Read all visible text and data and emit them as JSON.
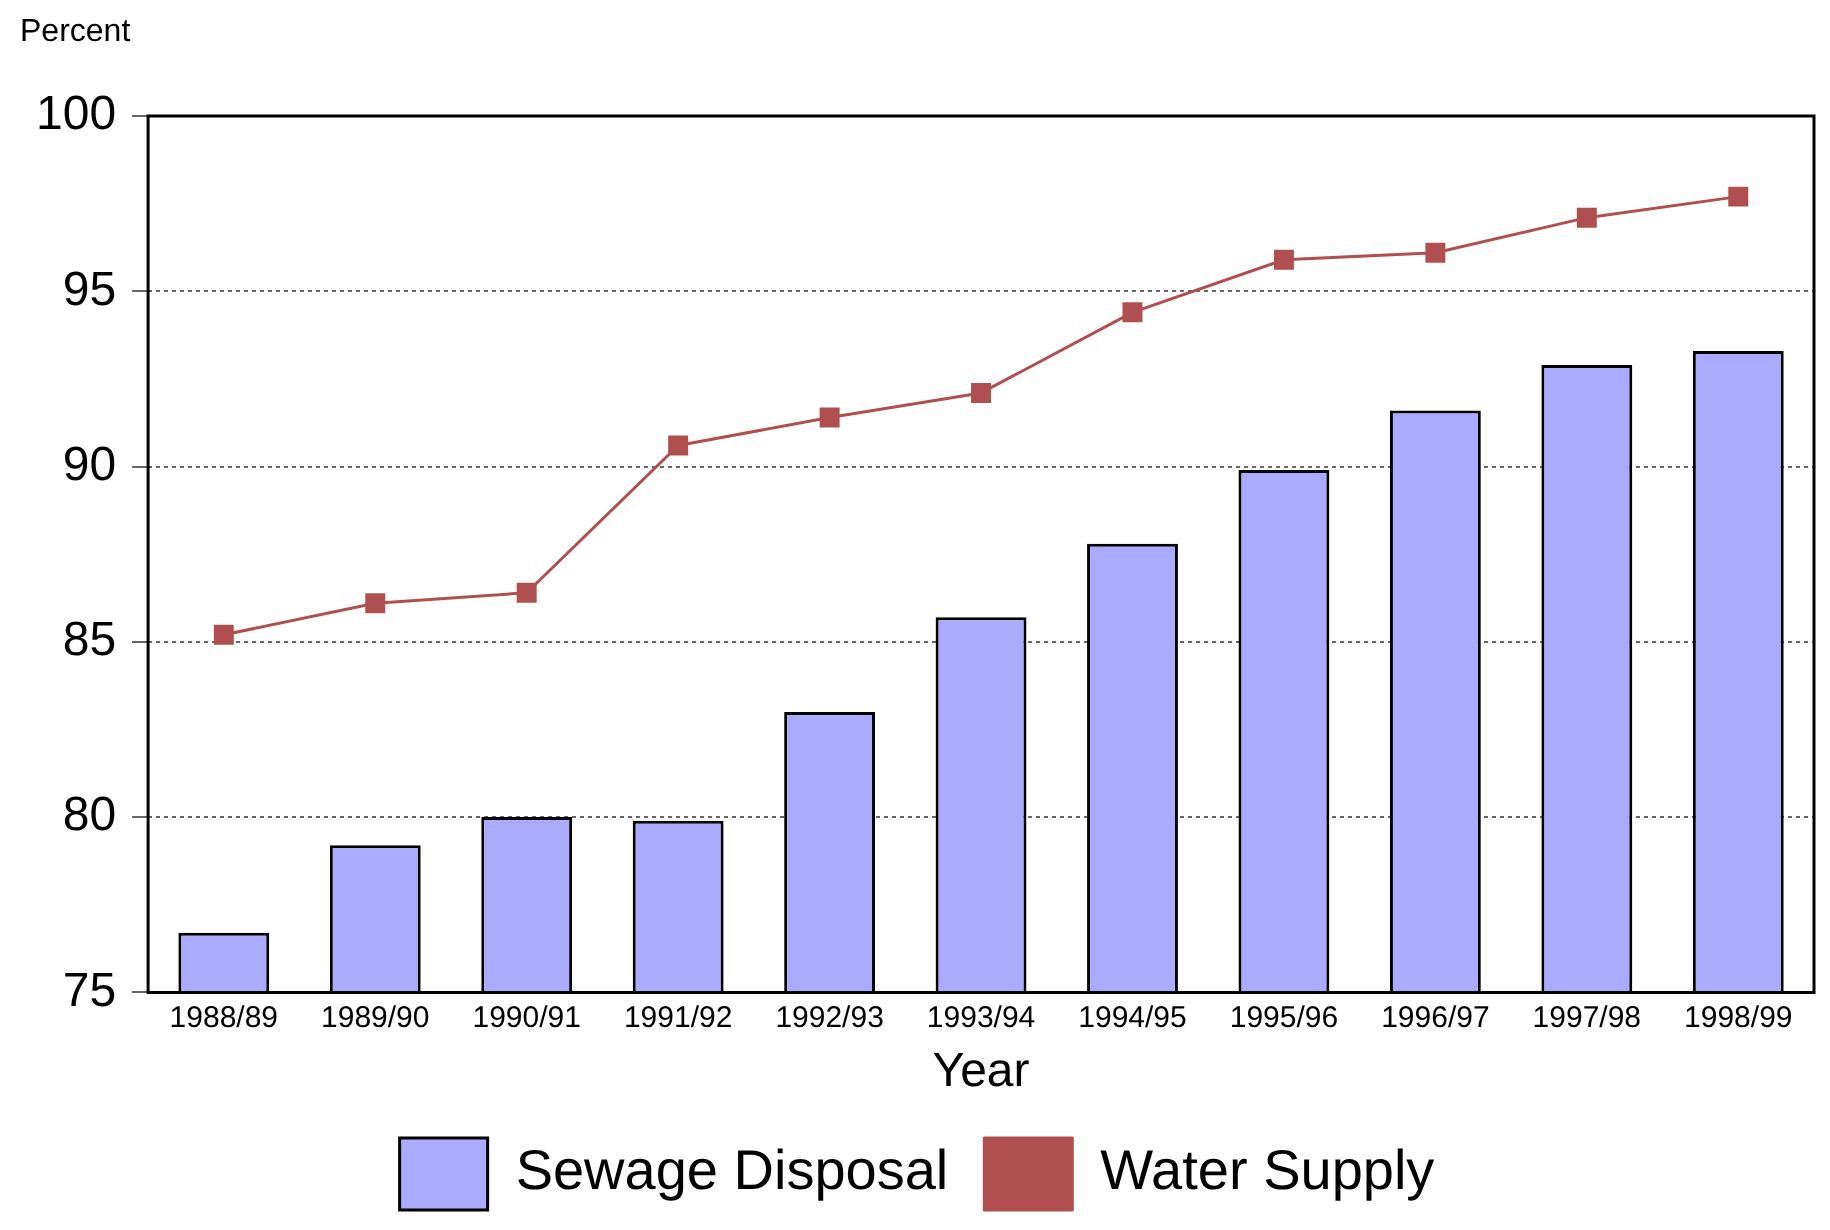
{
  "chart_data": {
    "type": "bar",
    "ylabel": "Percent",
    "xlabel": "Year",
    "categories": [
      "1988/89",
      "1989/90",
      "1990/91",
      "1991/92",
      "1992/93",
      "1993/94",
      "1994/95",
      "1995/96",
      "1996/97",
      "1997/98",
      "1998/99"
    ],
    "series": [
      {
        "name": "Sewage Disposal",
        "color": "#aaaaff",
        "values": [
          76.7,
          79.2,
          80.0,
          79.9,
          83.0,
          85.7,
          87.8,
          89.9,
          91.6,
          92.9,
          93.3
        ]
      },
      {
        "name": "Water Supply",
        "type": "line",
        "color": "#b04f4f",
        "marker": "square",
        "values": [
          85.2,
          86.1,
          86.4,
          90.6,
          91.4,
          92.1,
          94.4,
          95.9,
          96.1,
          97.1,
          97.7
        ]
      }
    ],
    "ylim": [
      75,
      100
    ],
    "yticks": [
      75,
      80,
      85,
      90,
      95,
      100
    ],
    "grid": "y",
    "legend": "bottom"
  }
}
